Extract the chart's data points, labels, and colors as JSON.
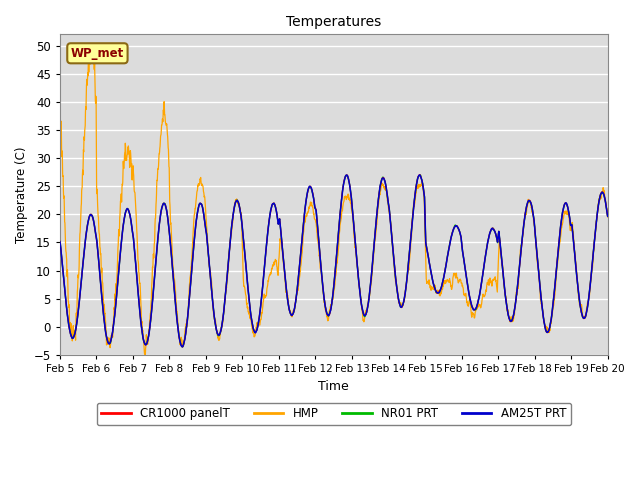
{
  "title": "Temperatures",
  "xlabel": "Time",
  "ylabel": "Temperature (C)",
  "ylim": [
    -5,
    52
  ],
  "xlim": [
    0,
    15
  ],
  "annotation_text": "WP_met",
  "annotation_color": "#8B0000",
  "annotation_bg": "#FFFF99",
  "bg_color": "#DCDCDC",
  "grid_color": "white",
  "legend_entries": [
    "CR1000 panelT",
    "HMP",
    "NR01 PRT",
    "AM25T PRT"
  ],
  "legend_colors": [
    "#FF0000",
    "#FFA500",
    "#00BB00",
    "#0000CC"
  ],
  "xtick_labels": [
    "Feb 5",
    "Feb 6",
    "Feb 7",
    "Feb 8",
    "Feb 9",
    "Feb 10",
    "Feb 11",
    "Feb 12",
    "Feb 13",
    "Feb 14",
    "Feb 15",
    "Feb 16",
    "Feb 17",
    "Feb 18",
    "Feb 19",
    "Feb 20"
  ],
  "xtick_positions": [
    0,
    1,
    2,
    3,
    4,
    5,
    6,
    7,
    8,
    9,
    10,
    11,
    12,
    13,
    14,
    15
  ],
  "ytick_positions": [
    -5,
    0,
    5,
    10,
    15,
    20,
    25,
    30,
    35,
    40,
    45,
    50
  ],
  "day_mins_base": [
    -2.0,
    -3.0,
    -3.2,
    -3.5,
    -1.5,
    -1.0,
    2.0,
    2.0,
    2.0,
    3.5,
    6.0,
    3.0,
    1.0,
    -1.0,
    1.5
  ],
  "day_maxs_base": [
    20.0,
    21.0,
    22.0,
    22.0,
    22.5,
    22.0,
    25.0,
    27.0,
    26.5,
    27.0,
    18.0,
    17.5,
    22.5,
    22.0,
    24.0
  ],
  "hmp_day_peaks": [
    49.0,
    32.0,
    38.0,
    26.5,
    22.5,
    11.0,
    22.0,
    24.0,
    25.0,
    26.0,
    9.0,
    8.0,
    22.0,
    20.5,
    24.0
  ],
  "pts_per_day": 144,
  "n_days": 15,
  "figsize": [
    6.4,
    4.8
  ],
  "dpi": 100
}
